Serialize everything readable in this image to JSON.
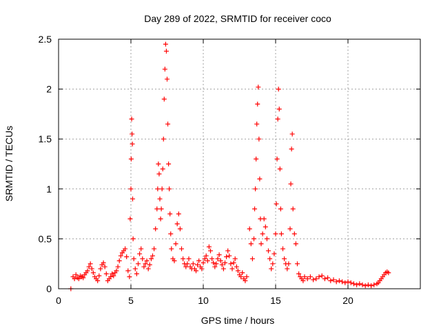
{
  "chart_data": {
    "type": "scatter",
    "title": "Day 289 of 2022, SRMTID for receiver coco",
    "xlabel": "GPS time / hours",
    "ylabel": "SRMTID / TECUs",
    "xlim": [
      0,
      25
    ],
    "ylim": [
      0,
      2.5
    ],
    "xticks": [
      0,
      5,
      10,
      15,
      20
    ],
    "xtick_labels": [
      "0",
      "5",
      "10",
      "15",
      "20"
    ],
    "yticks": [
      0,
      0.5,
      1,
      1.5,
      2,
      2.5
    ],
    "ytick_labels": [
      "0",
      "0.5",
      "1",
      "1.5",
      "2",
      "2.5"
    ],
    "grid": true,
    "marker": "+",
    "series": [
      {
        "name": "SRMTID",
        "color": "#ff0000",
        "points": [
          [
            0.85,
            0.0
          ],
          [
            1.0,
            0.12
          ],
          [
            1.1,
            0.1
          ],
          [
            1.2,
            0.14
          ],
          [
            1.3,
            0.11
          ],
          [
            1.4,
            0.1
          ],
          [
            1.5,
            0.13
          ],
          [
            1.6,
            0.12
          ],
          [
            1.7,
            0.11
          ],
          [
            1.8,
            0.14
          ],
          [
            1.9,
            0.16
          ],
          [
            2.0,
            0.18
          ],
          [
            2.1,
            0.22
          ],
          [
            2.2,
            0.25
          ],
          [
            2.3,
            0.2
          ],
          [
            2.4,
            0.16
          ],
          [
            2.5,
            0.12
          ],
          [
            2.6,
            0.1
          ],
          [
            2.7,
            0.08
          ],
          [
            2.8,
            0.13
          ],
          [
            2.9,
            0.2
          ],
          [
            3.0,
            0.24
          ],
          [
            3.1,
            0.26
          ],
          [
            3.2,
            0.22
          ],
          [
            3.3,
            0.15
          ],
          [
            3.4,
            0.08
          ],
          [
            3.5,
            0.1
          ],
          [
            3.6,
            0.12
          ],
          [
            3.7,
            0.15
          ],
          [
            3.8,
            0.13
          ],
          [
            3.9,
            0.16
          ],
          [
            4.0,
            0.18
          ],
          [
            4.1,
            0.22
          ],
          [
            4.2,
            0.28
          ],
          [
            4.3,
            0.33
          ],
          [
            4.4,
            0.36
          ],
          [
            4.5,
            0.38
          ],
          [
            4.6,
            0.4
          ],
          [
            4.7,
            0.32
          ],
          [
            4.8,
            0.18
          ],
          [
            4.9,
            0.12
          ],
          [
            4.95,
            0.7
          ],
          [
            5.0,
            1.0
          ],
          [
            5.02,
            1.3
          ],
          [
            5.05,
            1.7
          ],
          [
            5.08,
            1.55
          ],
          [
            5.1,
            1.45
          ],
          [
            5.12,
            0.9
          ],
          [
            5.15,
            0.5
          ],
          [
            5.2,
            0.3
          ],
          [
            5.3,
            0.2
          ],
          [
            5.4,
            0.15
          ],
          [
            5.5,
            0.25
          ],
          [
            5.6,
            0.35
          ],
          [
            5.7,
            0.4
          ],
          [
            5.8,
            0.3
          ],
          [
            5.9,
            0.22
          ],
          [
            6.0,
            0.25
          ],
          [
            6.1,
            0.28
          ],
          [
            6.2,
            0.2
          ],
          [
            6.3,
            0.24
          ],
          [
            6.4,
            0.3
          ],
          [
            6.5,
            0.33
          ],
          [
            6.6,
            0.4
          ],
          [
            6.7,
            0.6
          ],
          [
            6.8,
            0.8
          ],
          [
            6.85,
            1.0
          ],
          [
            6.9,
            1.25
          ],
          [
            6.95,
            1.15
          ],
          [
            7.0,
            0.9
          ],
          [
            7.05,
            0.7
          ],
          [
            7.1,
            0.8
          ],
          [
            7.15,
            1.0
          ],
          [
            7.2,
            1.2
          ],
          [
            7.25,
            1.5
          ],
          [
            7.3,
            1.9
          ],
          [
            7.35,
            2.2
          ],
          [
            7.4,
            2.45
          ],
          [
            7.45,
            2.38
          ],
          [
            7.5,
            2.1
          ],
          [
            7.55,
            1.65
          ],
          [
            7.6,
            1.25
          ],
          [
            7.65,
            1.0
          ],
          [
            7.7,
            0.75
          ],
          [
            7.75,
            0.55
          ],
          [
            7.8,
            0.4
          ],
          [
            7.9,
            0.3
          ],
          [
            8.0,
            0.28
          ],
          [
            8.1,
            0.45
          ],
          [
            8.2,
            0.65
          ],
          [
            8.3,
            0.75
          ],
          [
            8.4,
            0.6
          ],
          [
            8.5,
            0.4
          ],
          [
            8.6,
            0.3
          ],
          [
            8.7,
            0.25
          ],
          [
            8.8,
            0.22
          ],
          [
            8.9,
            0.25
          ],
          [
            9.0,
            0.3
          ],
          [
            9.1,
            0.22
          ],
          [
            9.2,
            0.2
          ],
          [
            9.3,
            0.25
          ],
          [
            9.4,
            0.2
          ],
          [
            9.5,
            0.18
          ],
          [
            9.6,
            0.24
          ],
          [
            9.7,
            0.28
          ],
          [
            9.8,
            0.22
          ],
          [
            9.9,
            0.2
          ],
          [
            10.0,
            0.26
          ],
          [
            10.1,
            0.3
          ],
          [
            10.2,
            0.33
          ],
          [
            10.3,
            0.28
          ],
          [
            10.4,
            0.42
          ],
          [
            10.5,
            0.38
          ],
          [
            10.6,
            0.3
          ],
          [
            10.7,
            0.26
          ],
          [
            10.8,
            0.22
          ],
          [
            10.9,
            0.25
          ],
          [
            11.0,
            0.3
          ],
          [
            11.1,
            0.34
          ],
          [
            11.2,
            0.28
          ],
          [
            11.3,
            0.24
          ],
          [
            11.4,
            0.2
          ],
          [
            11.5,
            0.26
          ],
          [
            11.6,
            0.32
          ],
          [
            11.7,
            0.38
          ],
          [
            11.8,
            0.33
          ],
          [
            11.9,
            0.25
          ],
          [
            12.0,
            0.2
          ],
          [
            12.1,
            0.26
          ],
          [
            12.2,
            0.3
          ],
          [
            12.3,
            0.22
          ],
          [
            12.4,
            0.18
          ],
          [
            12.5,
            0.14
          ],
          [
            12.6,
            0.12
          ],
          [
            12.7,
            0.16
          ],
          [
            12.8,
            0.1
          ],
          [
            12.9,
            0.08
          ],
          [
            13.0,
            0.12
          ],
          [
            13.2,
            0.6
          ],
          [
            13.3,
            0.45
          ],
          [
            13.4,
            0.3
          ],
          [
            13.5,
            0.5
          ],
          [
            13.55,
            0.8
          ],
          [
            13.6,
            1.0
          ],
          [
            13.65,
            1.3
          ],
          [
            13.7,
            1.65
          ],
          [
            13.75,
            1.85
          ],
          [
            13.8,
            2.02
          ],
          [
            13.85,
            1.5
          ],
          [
            13.9,
            1.1
          ],
          [
            13.95,
            0.7
          ],
          [
            14.0,
            0.45
          ],
          [
            14.1,
            0.55
          ],
          [
            14.2,
            0.7
          ],
          [
            14.3,
            0.62
          ],
          [
            14.4,
            0.5
          ],
          [
            14.5,
            0.38
          ],
          [
            14.6,
            0.3
          ],
          [
            14.7,
            0.2
          ],
          [
            14.8,
            0.25
          ],
          [
            14.9,
            0.35
          ],
          [
            15.0,
            0.55
          ],
          [
            15.05,
            0.85
          ],
          [
            15.1,
            1.3
          ],
          [
            15.15,
            1.7
          ],
          [
            15.2,
            2.0
          ],
          [
            15.25,
            1.8
          ],
          [
            15.3,
            1.2
          ],
          [
            15.35,
            0.8
          ],
          [
            15.4,
            0.55
          ],
          [
            15.5,
            0.4
          ],
          [
            15.6,
            0.3
          ],
          [
            15.7,
            0.25
          ],
          [
            15.8,
            0.2
          ],
          [
            15.9,
            0.25
          ],
          [
            16.0,
            0.6
          ],
          [
            16.05,
            1.05
          ],
          [
            16.1,
            1.4
          ],
          [
            16.15,
            1.55
          ],
          [
            16.2,
            0.8
          ],
          [
            16.3,
            0.55
          ],
          [
            16.4,
            0.45
          ],
          [
            16.5,
            0.25
          ],
          [
            16.6,
            0.15
          ],
          [
            16.7,
            0.12
          ],
          [
            16.8,
            0.1
          ],
          [
            16.9,
            0.08
          ],
          [
            17.0,
            0.12
          ],
          [
            17.2,
            0.1
          ],
          [
            17.4,
            0.12
          ],
          [
            17.6,
            0.09
          ],
          [
            17.8,
            0.1
          ],
          [
            18.0,
            0.12
          ],
          [
            18.2,
            0.13
          ],
          [
            18.4,
            0.1
          ],
          [
            18.6,
            0.11
          ],
          [
            18.8,
            0.08
          ],
          [
            19.0,
            0.09
          ],
          [
            19.2,
            0.07
          ],
          [
            19.4,
            0.08
          ],
          [
            19.6,
            0.07
          ],
          [
            19.8,
            0.06
          ],
          [
            20.0,
            0.07
          ],
          [
            20.2,
            0.06
          ],
          [
            20.4,
            0.05
          ],
          [
            20.6,
            0.04
          ],
          [
            20.8,
            0.05
          ],
          [
            21.0,
            0.04
          ],
          [
            21.2,
            0.03
          ],
          [
            21.4,
            0.04
          ],
          [
            21.6,
            0.03
          ],
          [
            21.8,
            0.04
          ],
          [
            22.0,
            0.05
          ],
          [
            22.1,
            0.06
          ],
          [
            22.2,
            0.08
          ],
          [
            22.3,
            0.1
          ],
          [
            22.4,
            0.12
          ],
          [
            22.5,
            0.14
          ],
          [
            22.6,
            0.16
          ],
          [
            22.7,
            0.17
          ],
          [
            22.8,
            0.16
          ]
        ]
      }
    ]
  }
}
